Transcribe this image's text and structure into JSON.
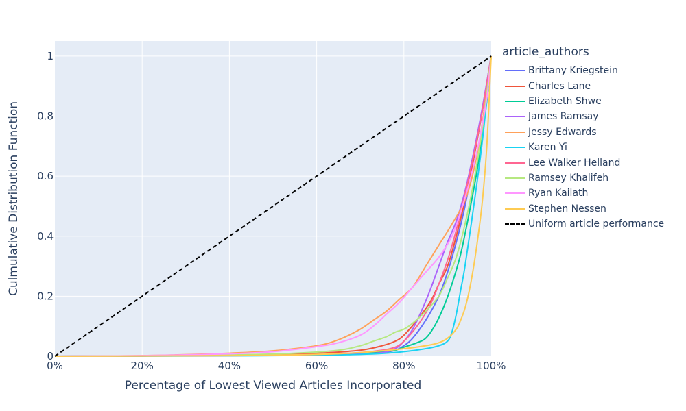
{
  "chart_data": {
    "type": "line",
    "xlabel": "Percentage of Lowest Viewed Articles Incorporated",
    "ylabel": "Culmulative Distribution Function",
    "xlim": [
      0,
      100
    ],
    "ylim": [
      0,
      1.05
    ],
    "x_ticks": [
      "0%",
      "20%",
      "40%",
      "60%",
      "80%",
      "100%"
    ],
    "y_ticks": [
      "0",
      "0.2",
      "0.4",
      "0.6",
      "0.8",
      "1"
    ],
    "grid": true,
    "legend_title": "article_authors",
    "legend_position": "right",
    "series": [
      {
        "name": "Brittany Kriegstein",
        "color": "#636efa",
        "points": [
          [
            0,
            0
          ],
          [
            40,
            0.002
          ],
          [
            60,
            0.004
          ],
          [
            70,
            0.008
          ],
          [
            75,
            0.012
          ],
          [
            78,
            0.02
          ],
          [
            80,
            0.035
          ],
          [
            82,
            0.06
          ],
          [
            85,
            0.12
          ],
          [
            88,
            0.2
          ],
          [
            90,
            0.28
          ],
          [
            92,
            0.38
          ],
          [
            94,
            0.5
          ],
          [
            96,
            0.66
          ],
          [
            98,
            0.82
          ],
          [
            100,
            1
          ]
        ]
      },
      {
        "name": "Charles Lane",
        "color": "#ef553b",
        "points": [
          [
            0,
            0
          ],
          [
            40,
            0.003
          ],
          [
            60,
            0.01
          ],
          [
            70,
            0.02
          ],
          [
            75,
            0.035
          ],
          [
            78,
            0.05
          ],
          [
            80,
            0.07
          ],
          [
            83,
            0.12
          ],
          [
            86,
            0.18
          ],
          [
            88,
            0.24
          ],
          [
            90,
            0.3
          ],
          [
            92,
            0.4
          ],
          [
            94,
            0.52
          ],
          [
            96,
            0.66
          ],
          [
            98,
            0.82
          ],
          [
            100,
            1
          ]
        ]
      },
      {
        "name": "Elizabeth Shwe",
        "color": "#00cc96",
        "points": [
          [
            0,
            0
          ],
          [
            40,
            0.002
          ],
          [
            60,
            0.005
          ],
          [
            70,
            0.01
          ],
          [
            75,
            0.015
          ],
          [
            78,
            0.02
          ],
          [
            80,
            0.03
          ],
          [
            83,
            0.045
          ],
          [
            85,
            0.06
          ],
          [
            87,
            0.1
          ],
          [
            89,
            0.16
          ],
          [
            91,
            0.24
          ],
          [
            93,
            0.34
          ],
          [
            95,
            0.48
          ],
          [
            97,
            0.64
          ],
          [
            99,
            0.85
          ],
          [
            100,
            1
          ]
        ]
      },
      {
        "name": "James Ramsay",
        "color": "#ab63fa",
        "points": [
          [
            0,
            0
          ],
          [
            40,
            0.002
          ],
          [
            60,
            0.004
          ],
          [
            70,
            0.008
          ],
          [
            75,
            0.012
          ],
          [
            78,
            0.025
          ],
          [
            80,
            0.05
          ],
          [
            82,
            0.09
          ],
          [
            84,
            0.15
          ],
          [
            86,
            0.22
          ],
          [
            88,
            0.3
          ],
          [
            90,
            0.38
          ],
          [
            92,
            0.45
          ],
          [
            94,
            0.55
          ],
          [
            96,
            0.68
          ],
          [
            98,
            0.83
          ],
          [
            100,
            1
          ]
        ]
      },
      {
        "name": "Jessy Edwards",
        "color": "#ffa15a",
        "points": [
          [
            0,
            0
          ],
          [
            20,
            0.002
          ],
          [
            40,
            0.01
          ],
          [
            50,
            0.018
          ],
          [
            60,
            0.035
          ],
          [
            65,
            0.055
          ],
          [
            70,
            0.09
          ],
          [
            73,
            0.12
          ],
          [
            76,
            0.15
          ],
          [
            79,
            0.19
          ],
          [
            82,
            0.23
          ],
          [
            85,
            0.3
          ],
          [
            88,
            0.37
          ],
          [
            91,
            0.44
          ],
          [
            94,
            0.52
          ],
          [
            96,
            0.62
          ],
          [
            98,
            0.78
          ],
          [
            100,
            1
          ]
        ]
      },
      {
        "name": "Karen Yi",
        "color": "#19d3f3",
        "points": [
          [
            0,
            0
          ],
          [
            40,
            0.001
          ],
          [
            60,
            0.003
          ],
          [
            70,
            0.006
          ],
          [
            75,
            0.009
          ],
          [
            80,
            0.015
          ],
          [
            85,
            0.025
          ],
          [
            88,
            0.035
          ],
          [
            90,
            0.05
          ],
          [
            91,
            0.08
          ],
          [
            92,
            0.14
          ],
          [
            93,
            0.22
          ],
          [
            94,
            0.3
          ],
          [
            96,
            0.5
          ],
          [
            98,
            0.72
          ],
          [
            100,
            1
          ]
        ]
      },
      {
        "name": "Lee Walker Helland",
        "color": "#ff6692",
        "points": [
          [
            0,
            0
          ],
          [
            40,
            0.002
          ],
          [
            60,
            0.006
          ],
          [
            70,
            0.012
          ],
          [
            75,
            0.02
          ],
          [
            78,
            0.03
          ],
          [
            80,
            0.05
          ],
          [
            83,
            0.1
          ],
          [
            86,
            0.17
          ],
          [
            88,
            0.24
          ],
          [
            90,
            0.32
          ],
          [
            92,
            0.42
          ],
          [
            94,
            0.54
          ],
          [
            96,
            0.67
          ],
          [
            98,
            0.82
          ],
          [
            100,
            1
          ]
        ]
      },
      {
        "name": "Ramsey Khalifeh",
        "color": "#b6e880",
        "points": [
          [
            0,
            0
          ],
          [
            20,
            0.001
          ],
          [
            40,
            0.004
          ],
          [
            55,
            0.01
          ],
          [
            65,
            0.02
          ],
          [
            70,
            0.035
          ],
          [
            73,
            0.05
          ],
          [
            76,
            0.065
          ],
          [
            78,
            0.08
          ],
          [
            80,
            0.09
          ],
          [
            82,
            0.11
          ],
          [
            85,
            0.15
          ],
          [
            88,
            0.2
          ],
          [
            90,
            0.26
          ],
          [
            92,
            0.33
          ],
          [
            94,
            0.44
          ],
          [
            96,
            0.58
          ],
          [
            98,
            0.76
          ],
          [
            100,
            1
          ]
        ]
      },
      {
        "name": "Ryan Kailath",
        "color": "#ff97ff",
        "points": [
          [
            0,
            0
          ],
          [
            20,
            0.002
          ],
          [
            40,
            0.008
          ],
          [
            50,
            0.015
          ],
          [
            60,
            0.032
          ],
          [
            65,
            0.045
          ],
          [
            70,
            0.07
          ],
          [
            73,
            0.1
          ],
          [
            76,
            0.14
          ],
          [
            79,
            0.18
          ],
          [
            82,
            0.23
          ],
          [
            85,
            0.28
          ],
          [
            88,
            0.33
          ],
          [
            91,
            0.4
          ],
          [
            93,
            0.48
          ],
          [
            95,
            0.58
          ],
          [
            97,
            0.7
          ],
          [
            99,
            0.86
          ],
          [
            100,
            1
          ]
        ]
      },
      {
        "name": "Stephen Nessen",
        "color": "#fecb52",
        "points": [
          [
            0,
            0
          ],
          [
            40,
            0.002
          ],
          [
            60,
            0.006
          ],
          [
            70,
            0.012
          ],
          [
            80,
            0.025
          ],
          [
            85,
            0.035
          ],
          [
            88,
            0.045
          ],
          [
            90,
            0.06
          ],
          [
            92,
            0.09
          ],
          [
            93,
            0.12
          ],
          [
            94,
            0.16
          ],
          [
            95,
            0.22
          ],
          [
            96,
            0.3
          ],
          [
            97,
            0.4
          ],
          [
            98,
            0.52
          ],
          [
            99,
            0.7
          ],
          [
            100,
            1
          ]
        ]
      },
      {
        "name": "Uniform article performance",
        "color": "#000000",
        "dash": true,
        "points": [
          [
            0,
            0
          ],
          [
            100,
            1
          ]
        ]
      }
    ]
  }
}
